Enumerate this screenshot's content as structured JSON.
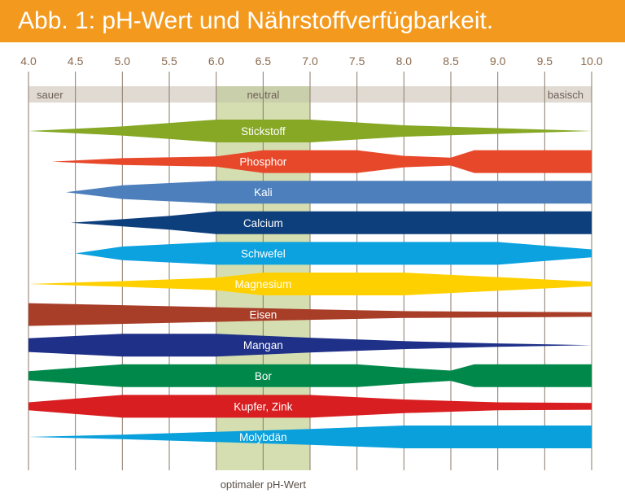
{
  "title": "Abb. 1: pH-Wert und Nährstoffverfügbarkeit.",
  "colors": {
    "title_bar": "#f39a1e",
    "axis_text": "#8a6a4e",
    "grid": "#8a7a6a",
    "scale_band": "#e0dad3",
    "scale_text": "#6d5f55",
    "optimal_band": "#d5deb0",
    "optimal_band_edge": "#b6c48a",
    "optimal_label": "#5a4f48"
  },
  "chart_data": {
    "type": "area",
    "title": "Abb. 1: pH-Wert und Nährstoffverfügbarkeit.",
    "x_ticks": [
      "4.0",
      "4.5",
      "5.0",
      "5.5",
      "6.0",
      "6.5",
      "7.0",
      "7.5",
      "8.0",
      "8.5",
      "9.0",
      "9.5",
      "10.0"
    ],
    "xlim": [
      4.0,
      10.0
    ],
    "grid": true,
    "scale_labels": [
      {
        "text": "sauer",
        "ph": 4.0,
        "anchor": "start"
      },
      {
        "text": "neutral",
        "ph": 6.5,
        "anchor": "middle"
      },
      {
        "text": "basisch",
        "ph": 10.0,
        "anchor": "end"
      }
    ],
    "optimal_range": {
      "from": 6.0,
      "to": 7.0,
      "label": "optimaler pH-Wert"
    },
    "availability_scale": "relative thickness 0-1",
    "series": [
      {
        "name": "Stickstoff",
        "color": "#86a825",
        "profile": [
          [
            4.0,
            0.0
          ],
          [
            5.0,
            0.4
          ],
          [
            6.0,
            1.0
          ],
          [
            7.0,
            1.0
          ],
          [
            8.0,
            0.5
          ],
          [
            9.0,
            0.25
          ],
          [
            10.0,
            0.0
          ]
        ]
      },
      {
        "name": "Phosphor",
        "color": "#e8482a",
        "profile": [
          [
            4.25,
            0.0
          ],
          [
            5.0,
            0.3
          ],
          [
            6.0,
            0.45
          ],
          [
            6.5,
            1.0
          ],
          [
            7.5,
            1.0
          ],
          [
            8.0,
            0.5
          ],
          [
            8.5,
            0.35
          ],
          [
            8.75,
            1.0
          ],
          [
            10.0,
            1.0
          ]
        ]
      },
      {
        "name": "Kali",
        "color": "#4d7fbd",
        "profile": [
          [
            4.4,
            0.0
          ],
          [
            5.0,
            0.6
          ],
          [
            6.0,
            1.0
          ],
          [
            10.0,
            1.0
          ]
        ]
      },
      {
        "name": "Calcium",
        "color": "#0d3f7c",
        "profile": [
          [
            4.45,
            0.0
          ],
          [
            5.5,
            0.6
          ],
          [
            6.0,
            1.0
          ],
          [
            10.0,
            1.0
          ]
        ]
      },
      {
        "name": "Schwefel",
        "color": "#0ca2df",
        "profile": [
          [
            4.5,
            0.0
          ],
          [
            5.0,
            0.6
          ],
          [
            6.0,
            1.0
          ],
          [
            9.0,
            1.0
          ],
          [
            10.0,
            0.35
          ]
        ]
      },
      {
        "name": "Magnesium",
        "color": "#ffd000",
        "profile": [
          [
            4.0,
            0.0
          ],
          [
            5.0,
            0.25
          ],
          [
            6.0,
            0.55
          ],
          [
            6.5,
            1.0
          ],
          [
            8.0,
            1.0
          ],
          [
            9.0,
            0.6
          ],
          [
            10.0,
            0.2
          ]
        ]
      },
      {
        "name": "Eisen",
        "color": "#a83d28",
        "profile": [
          [
            4.0,
            1.0
          ],
          [
            6.5,
            0.55
          ],
          [
            8.0,
            0.3
          ],
          [
            10.0,
            0.2
          ]
        ]
      },
      {
        "name": "Mangan",
        "color": "#1e3088",
        "profile": [
          [
            4.0,
            0.6
          ],
          [
            5.0,
            1.0
          ],
          [
            6.0,
            1.0
          ],
          [
            7.0,
            0.65
          ],
          [
            8.0,
            0.35
          ],
          [
            9.0,
            0.15
          ],
          [
            10.0,
            0.0
          ]
        ]
      },
      {
        "name": "Bor",
        "color": "#00884b",
        "profile": [
          [
            4.0,
            0.4
          ],
          [
            5.0,
            1.0
          ],
          [
            7.5,
            1.0
          ],
          [
            8.0,
            0.7
          ],
          [
            8.5,
            0.45
          ],
          [
            8.75,
            1.0
          ],
          [
            10.0,
            1.0
          ]
        ]
      },
      {
        "name": "Kupfer, Zink",
        "color": "#d81e20",
        "profile": [
          [
            4.0,
            0.35
          ],
          [
            5.0,
            1.0
          ],
          [
            7.0,
            1.0
          ],
          [
            8.0,
            0.6
          ],
          [
            9.0,
            0.35
          ],
          [
            10.0,
            0.3
          ]
        ]
      },
      {
        "name": "Molybdän",
        "color": "#0aa0dc",
        "profile": [
          [
            4.0,
            0.0
          ],
          [
            5.0,
            0.2
          ],
          [
            6.0,
            0.45
          ],
          [
            7.0,
            0.7
          ],
          [
            8.0,
            1.0
          ],
          [
            10.0,
            1.0
          ]
        ]
      }
    ]
  }
}
